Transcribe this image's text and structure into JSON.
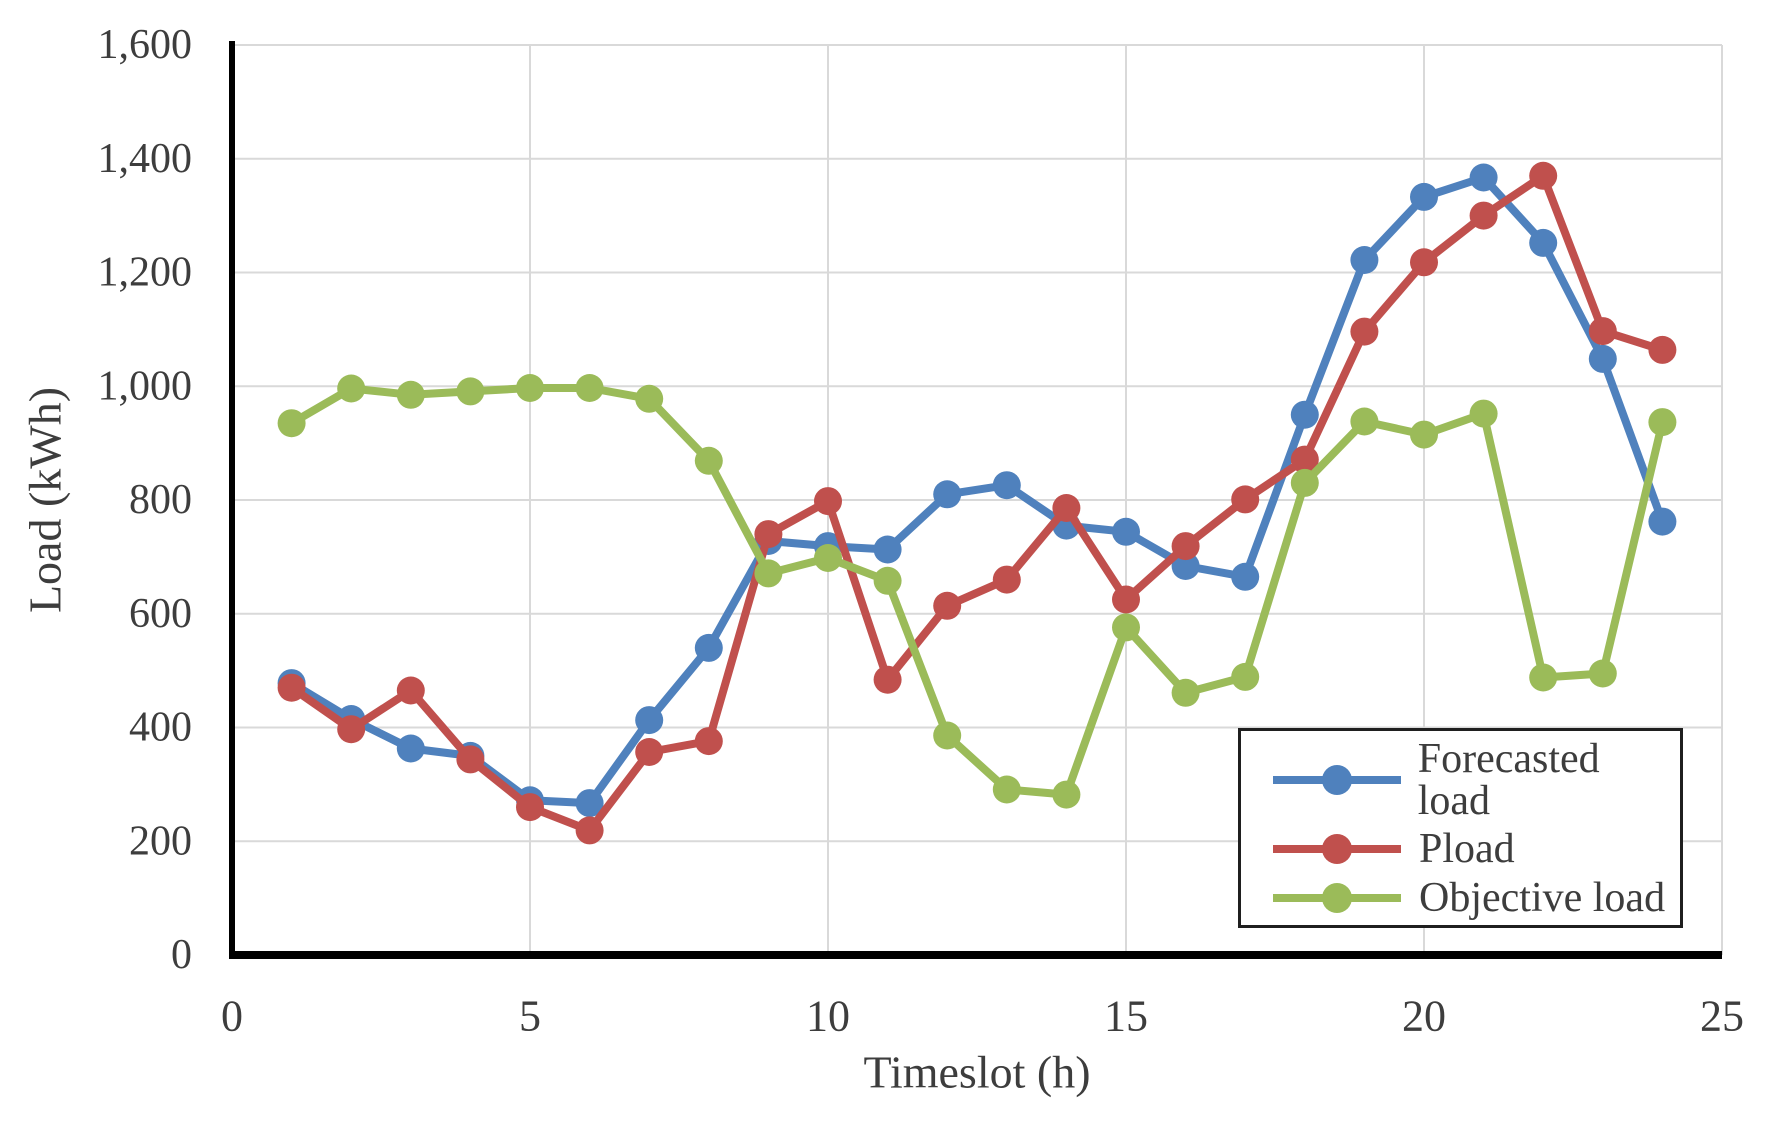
{
  "chart_data": {
    "type": "line",
    "title": "",
    "xlabel": "Timeslot (h)",
    "ylabel": "Load (kWh)",
    "x": [
      1,
      2,
      3,
      4,
      5,
      6,
      7,
      8,
      9,
      10,
      11,
      12,
      13,
      14,
      15,
      16,
      17,
      18,
      19,
      20,
      21,
      22,
      23,
      24
    ],
    "series": [
      {
        "name": "Forecasted load",
        "color": "#4F81BD",
        "values": [
          478,
          415,
          363,
          350,
          272,
          267,
          413,
          540,
          728,
          719,
          713,
          810,
          826,
          755,
          744,
          684,
          665,
          950,
          1222,
          1333,
          1367,
          1252,
          1048,
          762
        ]
      },
      {
        "name": "Pload",
        "color": "#C0504D",
        "values": [
          470,
          397,
          465,
          344,
          260,
          219,
          357,
          376,
          740,
          798,
          484,
          614,
          660,
          786,
          625,
          719,
          801,
          871,
          1096,
          1218,
          1300,
          1370,
          1097,
          1064
        ]
      },
      {
        "name": "Objective load",
        "color": "#9BBB59",
        "values": [
          935,
          996,
          985,
          991,
          997,
          997,
          978,
          869,
          671,
          698,
          658,
          386,
          291,
          282,
          576,
          461,
          489,
          830,
          938,
          915,
          952,
          488,
          495,
          937
        ]
      }
    ],
    "xlim": [
      0,
      25
    ],
    "ylim": [
      0,
      1600
    ],
    "x_ticks": [
      0,
      5,
      10,
      15,
      20,
      25
    ],
    "x_tick_labels": [
      "0",
      "5",
      "10",
      "15",
      "20",
      "25"
    ],
    "y_ticks": [
      0,
      200,
      400,
      600,
      800,
      1000,
      1200,
      1400,
      1600
    ],
    "y_tick_labels": [
      "0",
      "200",
      "400",
      "600",
      "800",
      "1,000",
      "1,200",
      "1,400",
      "1,600"
    ],
    "grid": true,
    "gridline_color": "#D9D9D9",
    "axis_color": "#000000",
    "tick_label_color": "#3d3d3d",
    "legend_position": "bottom-right",
    "legend_labels": [
      "Forecasted load",
      "Pload",
      "Objective load"
    ]
  }
}
